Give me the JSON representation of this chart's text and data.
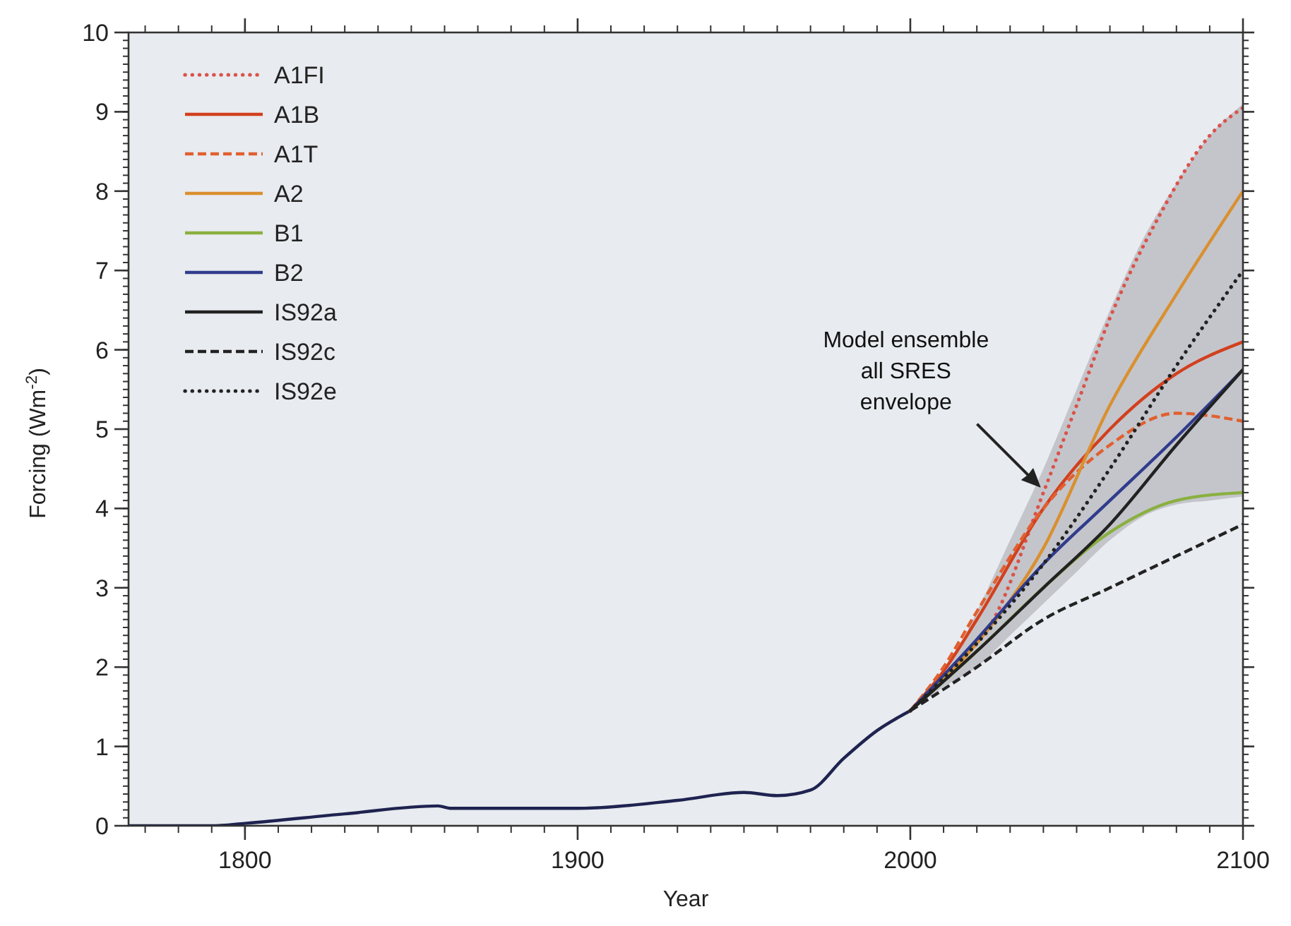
{
  "chart_data": {
    "type": "line",
    "xlabel": "Year",
    "ylabel": "Forcing (Wm$^{-2}$)",
    "xlim": [
      1765,
      2100
    ],
    "xticks": [
      1800,
      1900,
      2000,
      2100
    ],
    "ylim": [
      0,
      10
    ],
    "yticks": [
      0,
      1,
      2,
      3,
      4,
      5,
      6,
      7,
      8,
      9,
      10
    ],
    "grid": false,
    "legend": "top left",
    "annotations": [
      "Model ensemble all SRES envelope"
    ],
    "series": [
      {
        "type": "area",
        "color": "#c4c5cb",
        "x": [
          2000,
          2010,
          2020,
          2030,
          2040,
          2050,
          2060,
          2070,
          2080,
          2090,
          2100
        ],
        "values": [
          null,
          null,
          null,
          null,
          null,
          null,
          null,
          null,
          null,
          null,
          null
        ],
        "upper": [
          1.45,
          1.9,
          2.7,
          3.6,
          4.5,
          5.5,
          6.5,
          7.4,
          8.1,
          8.7,
          9.1
        ],
        "lower": [
          1.45,
          1.75,
          2.0,
          2.4,
          2.8,
          3.2,
          3.6,
          3.9,
          4.05,
          4.1,
          4.15
        ]
      },
      {
        "color": "#1f2350",
        "line_style": "solid",
        "x": [
          1765,
          1790,
          1800,
          1830,
          1858,
          1862,
          1900,
          1930,
          1950,
          1960,
          1970,
          1980,
          1990,
          2000
        ],
        "values": [
          0,
          0,
          0.03,
          0.15,
          0.25,
          0.22,
          0.22,
          0.32,
          0.42,
          0.38,
          0.45,
          0.85,
          1.2,
          1.45
        ]
      },
      {
        "name": "A1FI",
        "color": "#d9534a",
        "line_style": "dotted",
        "x": [
          2000,
          2010,
          2025,
          2040,
          2050,
          2060,
          2075,
          2090,
          2100
        ],
        "values": [
          1.45,
          1.9,
          2.6,
          4.2,
          5.3,
          6.4,
          7.7,
          8.7,
          9.05
        ]
      },
      {
        "name": "A1B",
        "color": "#d2401e",
        "line_style": "solid",
        "x": [
          2000,
          2010,
          2020,
          2040,
          2060,
          2080,
          2100
        ],
        "values": [
          1.45,
          1.95,
          2.6,
          4.0,
          5.0,
          5.7,
          6.1
        ]
      },
      {
        "name": "A1T",
        "color": "#e06030",
        "line_style": "dashed",
        "x": [
          2000,
          2010,
          2020,
          2040,
          2060,
          2080,
          2100
        ],
        "values": [
          1.45,
          2.0,
          2.7,
          4.0,
          4.8,
          5.2,
          5.1
        ]
      },
      {
        "name": "A2",
        "color": "#d99030",
        "line_style": "solid",
        "x": [
          2000,
          2020,
          2040,
          2060,
          2080,
          2100
        ],
        "values": [
          1.45,
          2.3,
          3.5,
          5.3,
          6.7,
          8.0
        ]
      },
      {
        "name": "B1",
        "color": "#8ab040",
        "line_style": "solid",
        "x": [
          2000,
          2020,
          2040,
          2060,
          2080,
          2100
        ],
        "values": [
          1.45,
          2.2,
          3.0,
          3.7,
          4.1,
          4.2
        ]
      },
      {
        "name": "B2",
        "color": "#303c8c",
        "line_style": "solid",
        "x": [
          2000,
          2020,
          2040,
          2060,
          2080,
          2100
        ],
        "values": [
          1.45,
          2.35,
          3.3,
          4.1,
          4.9,
          5.75
        ]
      },
      {
        "name": "IS92a",
        "color": "#222222",
        "line_style": "solid",
        "x": [
          2000,
          2020,
          2040,
          2060,
          2080,
          2100
        ],
        "values": [
          1.45,
          2.2,
          3.0,
          3.8,
          4.8,
          5.75
        ]
      },
      {
        "name": "IS92c",
        "color": "#222222",
        "line_style": "dashed",
        "x": [
          2000,
          2020,
          2040,
          2060,
          2080,
          2100
        ],
        "values": [
          1.45,
          2.0,
          2.6,
          3.0,
          3.4,
          3.8
        ]
      },
      {
        "name": "IS92e",
        "color": "#222222",
        "line_style": "dotted",
        "x": [
          2000,
          2020,
          2040,
          2060,
          2080,
          2100
        ],
        "values": [
          1.45,
          2.3,
          3.3,
          4.5,
          5.8,
          7.0
        ]
      }
    ]
  }
}
